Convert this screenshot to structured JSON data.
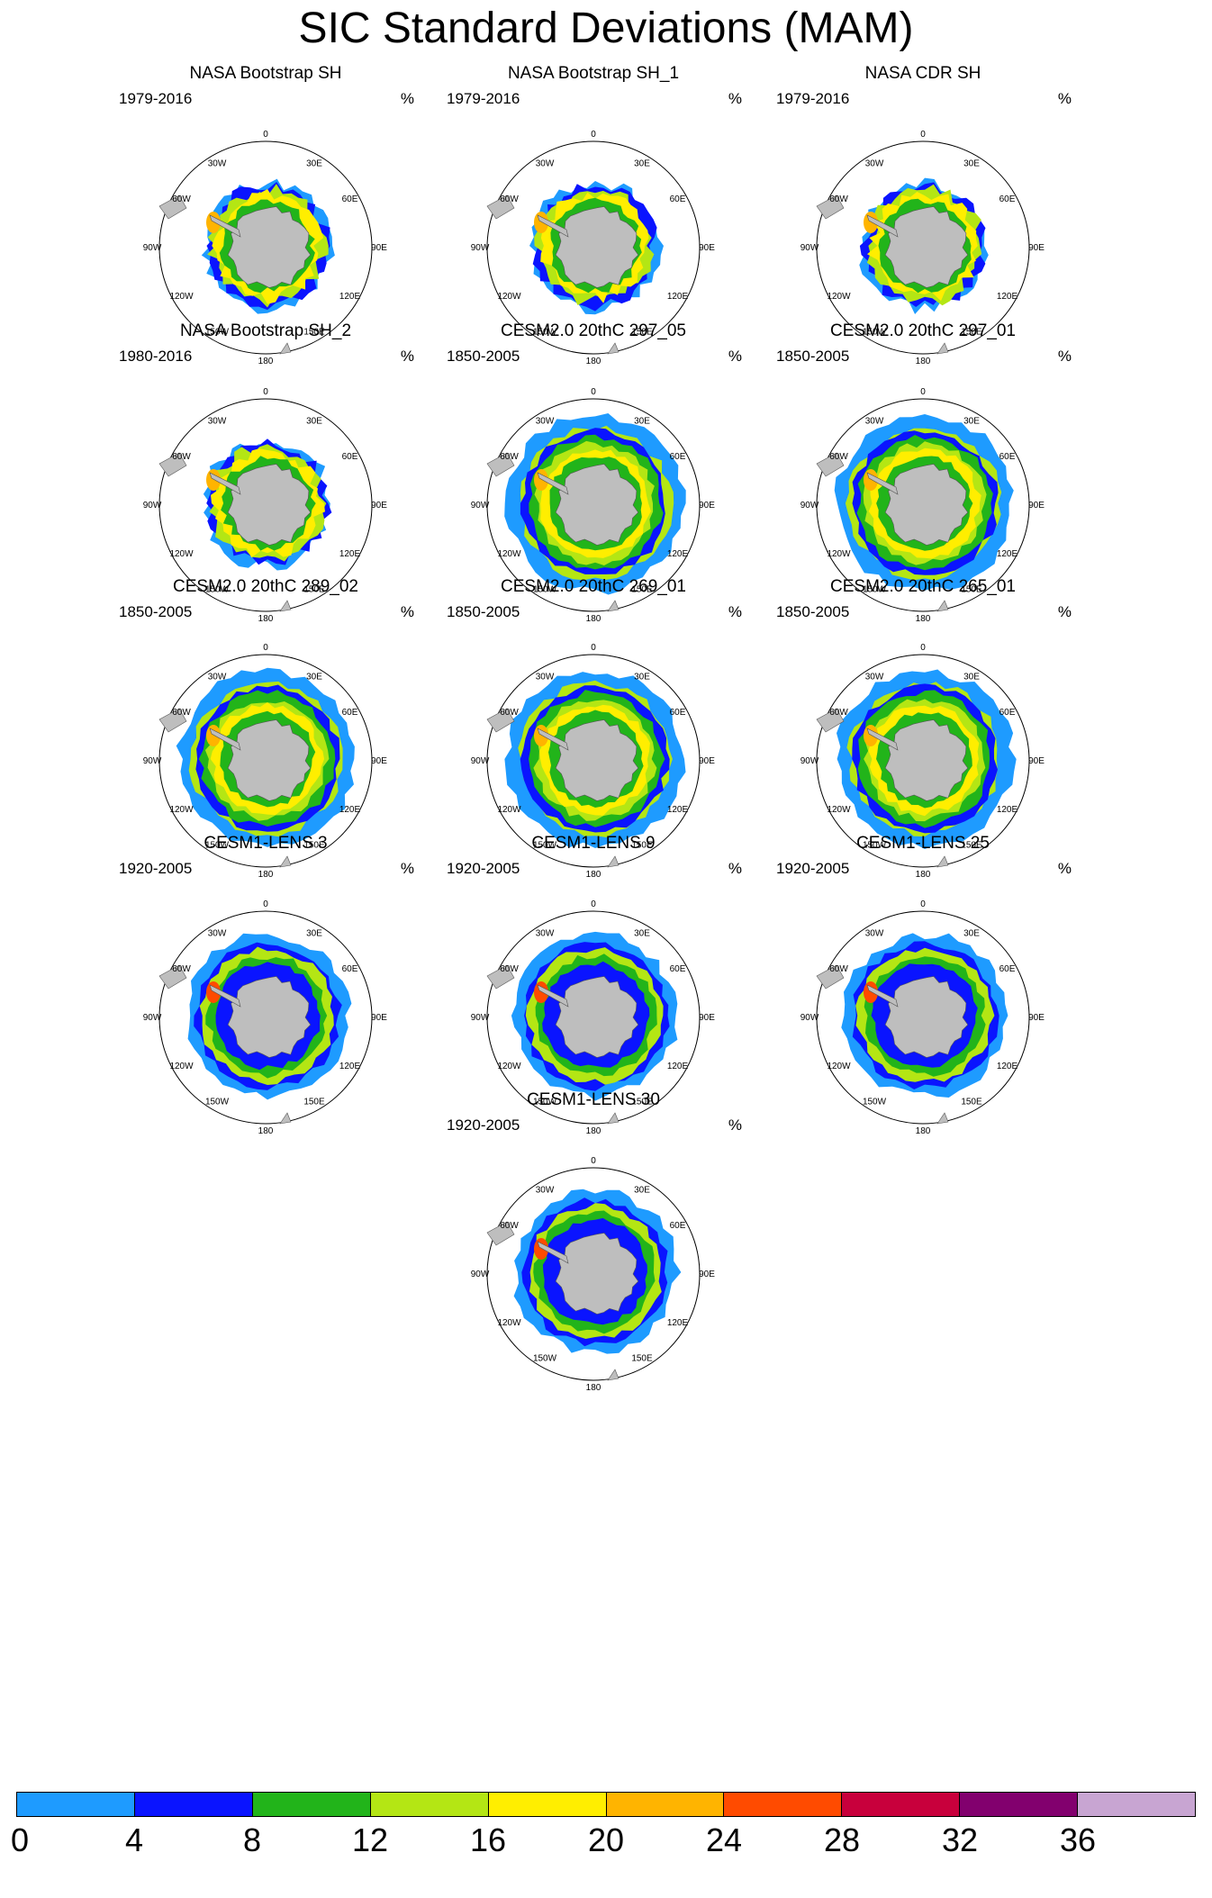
{
  "title": "SIC Standard Deviations (MAM)",
  "units": "%",
  "longitude_labels": [
    "0",
    "30E",
    "60E",
    "90E",
    "120E",
    "150E",
    "180",
    "150W",
    "120W",
    "90W",
    "60W",
    "30W"
  ],
  "panels": [
    {
      "title": "NASA Bootstrap SH",
      "years": "1979-2016",
      "kind": "obs"
    },
    {
      "title": "NASA Bootstrap SH_1",
      "years": "1979-2016",
      "kind": "obs"
    },
    {
      "title": "NASA CDR SH",
      "years": "1979-2016",
      "kind": "obs"
    },
    {
      "title": "NASA Bootstrap SH_2",
      "years": "1980-2016",
      "kind": "obs"
    },
    {
      "title": "CESM2.0 20thC 297_05",
      "years": "1850-2005",
      "kind": "cesm2"
    },
    {
      "title": "CESM2.0 20thC 297_01",
      "years": "1850-2005",
      "kind": "cesm2"
    },
    {
      "title": "CESM2.0 20thC 289_02",
      "years": "1850-2005",
      "kind": "cesm2"
    },
    {
      "title": "CESM2.0 20thC 269_01",
      "years": "1850-2005",
      "kind": "cesm2"
    },
    {
      "title": "CESM2.0 20thC 265_01",
      "years": "1850-2005",
      "kind": "cesm2"
    },
    {
      "title": "CESM1-LENS 3",
      "years": "1920-2005",
      "kind": "lens"
    },
    {
      "title": "CESM1-LENS 9",
      "years": "1920-2005",
      "kind": "lens"
    },
    {
      "title": "CESM1-LENS 25",
      "years": "1920-2005",
      "kind": "lens"
    },
    {
      "title": "CESM1-LENS 30",
      "years": "1920-2005",
      "kind": "lens"
    }
  ],
  "colorbar": {
    "colors": [
      "#1e9bff",
      "#0a14ff",
      "#22b41a",
      "#b4e614",
      "#ffee00",
      "#ffb400",
      "#ff4b00",
      "#c8003c",
      "#82006e",
      "#c8a5d2"
    ],
    "labels": [
      "0",
      "4",
      "8",
      "12",
      "16",
      "20",
      "24",
      "28",
      "32",
      "36"
    ]
  },
  "map_colors": {
    "land": "#bebebe",
    "ocean": "#ffffff"
  }
}
